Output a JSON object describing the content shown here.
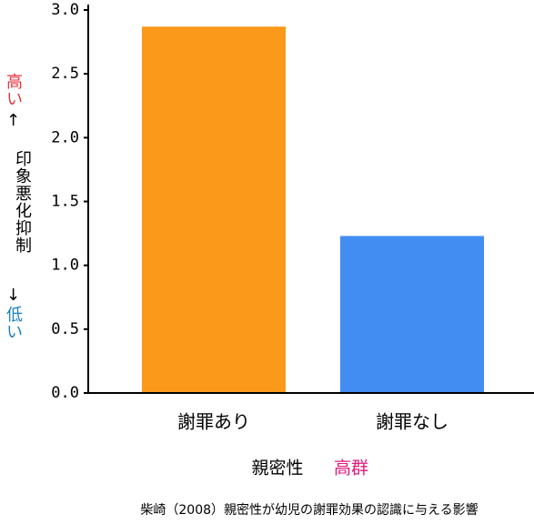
{
  "chart_data": {
    "type": "bar",
    "categories": [
      "謝罪あり",
      "謝罪なし"
    ],
    "values": [
      2.87,
      1.23
    ],
    "colors": [
      "#fb9a1a",
      "#418df2"
    ],
    "ylim": [
      0,
      3
    ],
    "yticks": [
      {
        "value": 0,
        "label": "0.0"
      },
      0.5,
      {
        "value": 1,
        "label": "1.0"
      },
      1.5,
      {
        "value": 2,
        "label": "2.0"
      },
      2.5,
      {
        "value": 3,
        "label": "3.0"
      }
    ],
    "y_label": {
      "high": "高い",
      "up": "↑",
      "main": "印象悪化抑制",
      "down": "↓",
      "low": "低い"
    },
    "x_label": {
      "main": "親密性",
      "group": "高群"
    },
    "caption": "柴崎（2008）親密性が幼児の謝罪効果の認識に与える影響"
  }
}
